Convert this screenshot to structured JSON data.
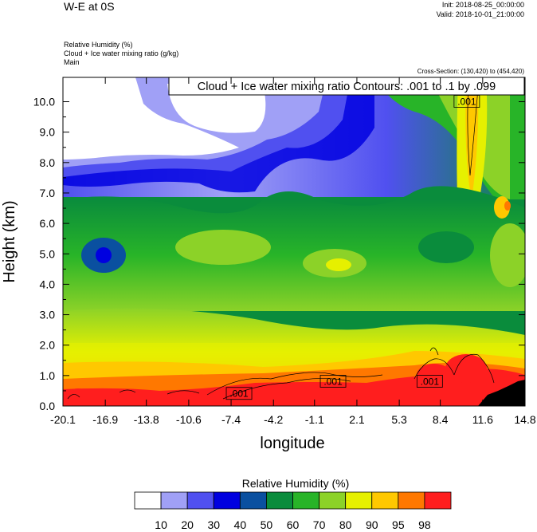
{
  "header": {
    "title": "W-E at 0S",
    "init": "Init: 2018-08-25_00:00:00",
    "valid": "Valid: 2018-10-01_21:00:00",
    "field1": "Relative Humidity   (%)",
    "field2": "Cloud + Ice water mixing ratio   (g/kg)",
    "field3": "Main",
    "cross_section": "Cross-Section: (130,420) to (454,420)"
  },
  "colors": {
    "ramp": [
      "#ffffff",
      "#a0a0f6",
      "#5050f0",
      "#0000e0",
      "#0a50a0",
      "#0a8c3c",
      "#28b428",
      "#8cd228",
      "#e6f000",
      "#ffc800",
      "#ff7800",
      "#ff1e1e"
    ]
  },
  "chart_data": {
    "type": "heatmap",
    "title": "Cloud + Ice water mixing ratio Contours: .001 to .1 by .099",
    "xlabel": "longitude",
    "ylabel": "Height (km)",
    "x_ticks": [
      "-20.1",
      "-16.9",
      "-13.8",
      "-10.6",
      "-7.4",
      "-4.2",
      "-1.1",
      "2.1",
      "5.3",
      "8.4",
      "11.6",
      "14.8"
    ],
    "y_ticks": [
      "0.0",
      "1.0",
      "2.0",
      "3.0",
      "4.0",
      "5.0",
      "6.0",
      "7.0",
      "8.0",
      "9.0",
      "10.0"
    ],
    "xlim": [
      -20.1,
      14.8
    ],
    "ylim": [
      0.0,
      10.8
    ],
    "contour_labels": [
      {
        "text": ".001",
        "lon": -6.8,
        "h": 0.4
      },
      {
        "text": ".001",
        "lon": 0.3,
        "h": 0.8
      },
      {
        "text": ".001",
        "lon": 7.6,
        "h": 0.8
      },
      {
        "text": ".001",
        "lon": 10.4,
        "h": 10.0
      }
    ],
    "legend": {
      "title": "Relative Humidity  (%)",
      "levels": [
        "10",
        "20",
        "30",
        "40",
        "50",
        "60",
        "70",
        "80",
        "90",
        "95",
        "98"
      ]
    }
  }
}
